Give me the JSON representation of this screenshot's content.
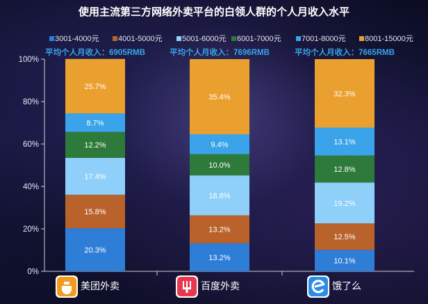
{
  "chart_data": {
    "type": "bar",
    "stacked": true,
    "title": "使用主流第三方网络外卖平台的白领人群的个人月收入水平",
    "categories": [
      "美团外卖",
      "百度外卖",
      "饿了么"
    ],
    "category_icons": [
      "meituan-waimai-icon",
      "baidu-waimai-icon",
      "eleme-icon"
    ],
    "category_icon_colors": [
      "#f39a1f",
      "#e8384f",
      "#2b8de8"
    ],
    "averages": [
      "平均个人月收入：6905RMB",
      "平均个人月收入：7696RMB",
      "平均个人月收入：7665RMB"
    ],
    "series": [
      {
        "name": "3001-4000元",
        "color": "#2e7ed8",
        "values": [
          20.3,
          13.2,
          10.1
        ],
        "labels": [
          "20.3%",
          "13.2%",
          "10.1%"
        ]
      },
      {
        "name": "4001-5000元",
        "color": "#b9622c",
        "values": [
          15.8,
          13.2,
          12.5
        ],
        "labels": [
          "15.8%",
          "13.2%",
          "12.5%"
        ]
      },
      {
        "name": "5001-6000元",
        "color": "#8fd0fa",
        "values": [
          17.4,
          18.8,
          19.2
        ],
        "labels": [
          "17.4%",
          "18.8%",
          "19.2%"
        ]
      },
      {
        "name": "6001-7000元",
        "color": "#2e7a3a",
        "values": [
          12.2,
          10.0,
          12.8
        ],
        "labels": [
          "12.2%",
          "10.0%",
          "12.8%"
        ]
      },
      {
        "name": "7001-8000元",
        "color": "#3aa3ea",
        "values": [
          8.7,
          9.4,
          13.1
        ],
        "labels": [
          "8.7%",
          "9.4%",
          "13.1%"
        ]
      },
      {
        "name": "8001-15000元",
        "color": "#eaa02f",
        "values": [
          25.7,
          35.4,
          32.3
        ],
        "labels": [
          "25.7%",
          "35.4%",
          "32.3%"
        ]
      }
    ],
    "ylim": [
      0,
      100
    ],
    "yticks": [
      "0%",
      "20%",
      "40%",
      "60%",
      "80%",
      "100%"
    ],
    "legend_position": "top",
    "grid": false
  }
}
